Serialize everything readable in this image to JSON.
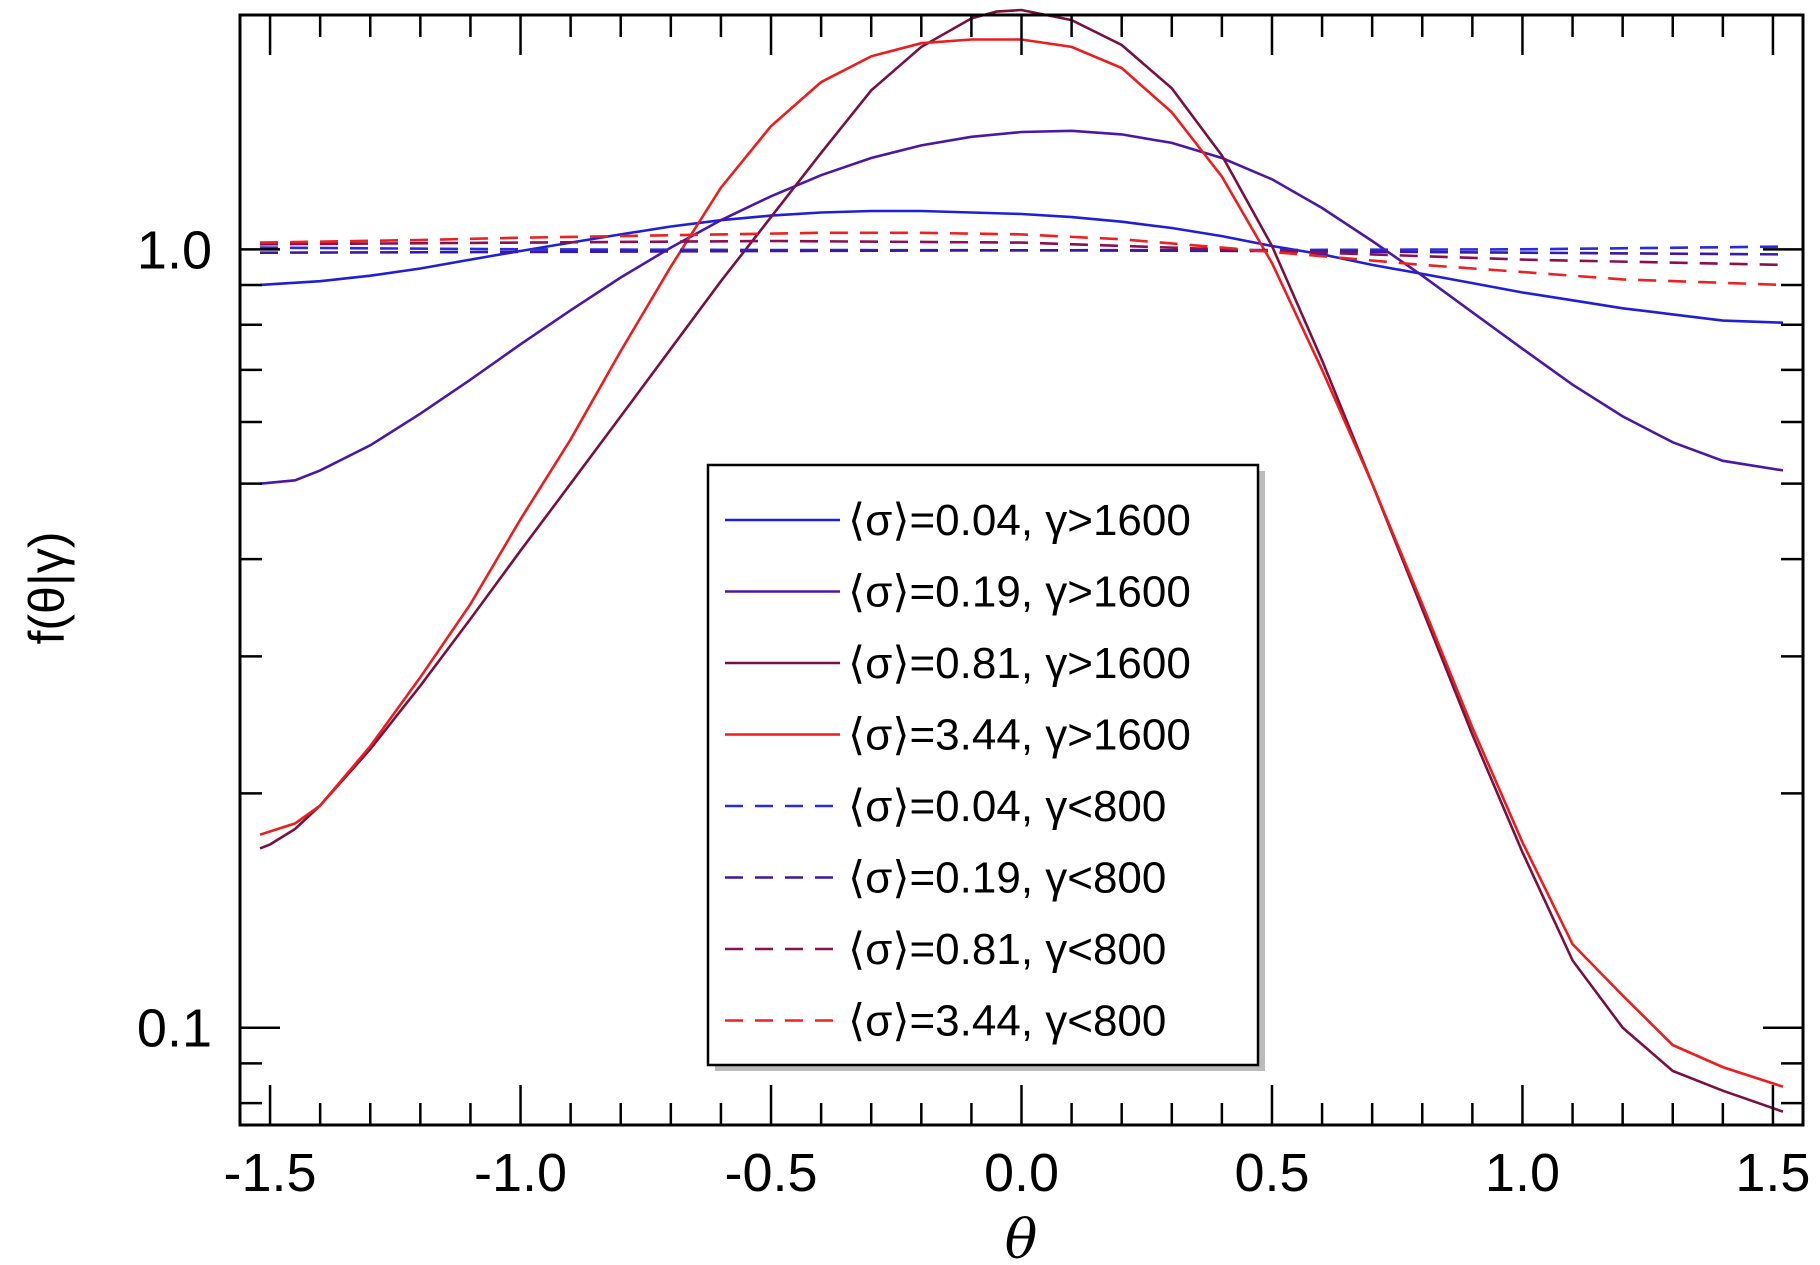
{
  "chart_data": {
    "type": "line",
    "title": "",
    "xlabel": "θ",
    "ylabel": "f(θ|γ)",
    "xlim": [
      -1.56,
      1.56
    ],
    "ylim": [
      0.075,
      2.0
    ],
    "yscale": "log",
    "grid": false,
    "legend_position": "center",
    "xticks": [
      {
        "value": -1.5,
        "label": "-1.5"
      },
      {
        "value": -1.0,
        "label": "-1.0"
      },
      {
        "value": -0.5,
        "label": "-0.5"
      },
      {
        "value": 0.0,
        "label": "0.0"
      },
      {
        "value": 0.5,
        "label": "0.5"
      },
      {
        "value": 1.0,
        "label": "1.0"
      },
      {
        "value": 1.5,
        "label": "1.5"
      }
    ],
    "yticks": [
      {
        "value": 0.1,
        "label": "0.1"
      },
      {
        "value": 1.0,
        "label": "1.0"
      }
    ],
    "series": [
      {
        "name": "⟨σ⟩=0.04, γ>1600",
        "color": "#1f1fd8",
        "dash": "solid",
        "x": [
          -1.52,
          -1.4,
          -1.3,
          -1.2,
          -1.1,
          -1.0,
          -0.9,
          -0.8,
          -0.7,
          -0.6,
          -0.5,
          -0.4,
          -0.3,
          -0.2,
          -0.1,
          0.0,
          0.1,
          0.2,
          0.3,
          0.4,
          0.5,
          0.6,
          0.7,
          0.8,
          0.9,
          1.0,
          1.1,
          1.2,
          1.3,
          1.4,
          1.52
        ],
        "y": [
          0.9,
          0.91,
          0.925,
          0.945,
          0.97,
          0.995,
          1.02,
          1.045,
          1.07,
          1.09,
          1.105,
          1.115,
          1.12,
          1.12,
          1.115,
          1.11,
          1.1,
          1.085,
          1.065,
          1.04,
          1.01,
          0.985,
          0.955,
          0.93,
          0.905,
          0.88,
          0.86,
          0.84,
          0.825,
          0.81,
          0.805
        ]
      },
      {
        "name": "⟨σ⟩=0.19, γ>1600",
        "color": "#4a18a8",
        "dash": "solid",
        "x": [
          -1.52,
          -1.45,
          -1.4,
          -1.3,
          -1.2,
          -1.1,
          -1.0,
          -0.9,
          -0.8,
          -0.7,
          -0.6,
          -0.5,
          -0.4,
          -0.3,
          -0.2,
          -0.1,
          0.0,
          0.1,
          0.2,
          0.3,
          0.4,
          0.5,
          0.6,
          0.7,
          0.8,
          0.9,
          1.0,
          1.1,
          1.2,
          1.3,
          1.4,
          1.52
        ],
        "y": [
          0.5,
          0.505,
          0.52,
          0.56,
          0.615,
          0.68,
          0.755,
          0.835,
          0.92,
          1.005,
          1.09,
          1.17,
          1.245,
          1.31,
          1.36,
          1.395,
          1.415,
          1.42,
          1.405,
          1.37,
          1.31,
          1.23,
          1.13,
          1.025,
          0.925,
          0.83,
          0.745,
          0.67,
          0.61,
          0.565,
          0.535,
          0.52
        ]
      },
      {
        "name": "⟨σ⟩=0.81, γ>1600",
        "color": "#7a1040",
        "dash": "solid",
        "x": [
          -1.52,
          -1.5,
          -1.45,
          -1.4,
          -1.3,
          -1.2,
          -1.1,
          -1.0,
          -0.9,
          -0.8,
          -0.7,
          -0.6,
          -0.5,
          -0.4,
          -0.3,
          -0.2,
          -0.1,
          -0.05,
          0.0,
          0.1,
          0.2,
          0.3,
          0.4,
          0.5,
          0.6,
          0.7,
          0.8,
          0.9,
          1.0,
          1.1,
          1.2,
          1.3,
          1.4,
          1.52
        ],
        "y": [
          0.17,
          0.172,
          0.18,
          0.193,
          0.228,
          0.275,
          0.335,
          0.41,
          0.5,
          0.61,
          0.745,
          0.91,
          1.1,
          1.33,
          1.6,
          1.82,
          1.98,
          2.02,
          2.03,
          1.97,
          1.83,
          1.61,
          1.32,
          1.01,
          0.72,
          0.5,
          0.345,
          0.238,
          0.168,
          0.122,
          0.1,
          0.088,
          0.083,
          0.078
        ]
      },
      {
        "name": "⟨σ⟩=3.44, γ>1600",
        "color": "#ee1c1c",
        "dash": "solid",
        "x": [
          -1.52,
          -1.45,
          -1.4,
          -1.3,
          -1.2,
          -1.1,
          -1.0,
          -0.9,
          -0.8,
          -0.7,
          -0.6,
          -0.5,
          -0.4,
          -0.3,
          -0.2,
          -0.1,
          0.0,
          0.1,
          0.2,
          0.3,
          0.4,
          0.5,
          0.6,
          0.7,
          0.8,
          0.9,
          1.0,
          1.1,
          1.2,
          1.3,
          1.4,
          1.52
        ],
        "y": [
          0.177,
          0.183,
          0.193,
          0.23,
          0.282,
          0.35,
          0.45,
          0.57,
          0.74,
          0.95,
          1.2,
          1.44,
          1.64,
          1.77,
          1.84,
          1.86,
          1.86,
          1.82,
          1.71,
          1.5,
          1.24,
          0.96,
          0.7,
          0.5,
          0.35,
          0.243,
          0.173,
          0.128,
          0.11,
          0.095,
          0.089,
          0.084
        ]
      },
      {
        "name": "⟨σ⟩=0.04, γ<800",
        "color": "#2a2ae0",
        "dash": "dashed",
        "x": [
          -1.52,
          -1.0,
          -0.5,
          0.0,
          0.5,
          1.0,
          1.52
        ],
        "y": [
          1.005,
          1.0,
          0.998,
          0.997,
          0.998,
          1.0,
          1.008
        ]
      },
      {
        "name": "⟨σ⟩=0.19, γ<800",
        "color": "#3a1aa0",
        "dash": "dashed",
        "x": [
          -1.52,
          -1.0,
          -0.5,
          0.0,
          0.5,
          1.0,
          1.52
        ],
        "y": [
          0.99,
          0.992,
          0.995,
          0.997,
          0.995,
          0.99,
          0.985
        ]
      },
      {
        "name": "⟨σ⟩=0.81, γ<800",
        "color": "#8a1050",
        "dash": "dashed",
        "x": [
          -1.52,
          -1.0,
          -0.5,
          0.0,
          0.5,
          1.0,
          1.52
        ],
        "y": [
          1.015,
          1.02,
          1.025,
          1.02,
          0.995,
          0.97,
          0.955
        ]
      },
      {
        "name": "⟨σ⟩=3.44, γ<800",
        "color": "#f02020",
        "dash": "dashed",
        "x": [
          -1.52,
          -1.2,
          -1.0,
          -0.8,
          -0.6,
          -0.4,
          -0.2,
          0.0,
          0.2,
          0.4,
          0.6,
          0.8,
          1.0,
          1.2,
          1.52
        ],
        "y": [
          1.02,
          1.028,
          1.035,
          1.04,
          1.045,
          1.05,
          1.05,
          1.045,
          1.03,
          1.005,
          0.98,
          0.955,
          0.935,
          0.915,
          0.9
        ]
      }
    ]
  }
}
